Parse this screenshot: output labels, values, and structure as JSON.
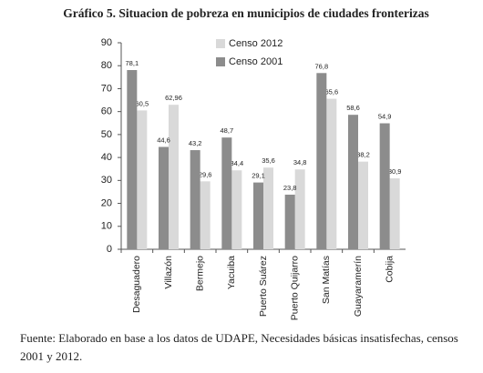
{
  "chart_data": {
    "type": "bar",
    "title": "Gráfico 5. Situacion de pobreza en municipios de ciudades fronterizas",
    "categories": [
      "Desaguadero",
      "Villazón",
      "Bermejo",
      "Yacuiba",
      "Puerto Suárez",
      "Puerto Quijarro",
      "San Matías",
      "Guayaramerín",
      "Cobija"
    ],
    "series": [
      {
        "name": "Censo 2012",
        "color": "#d9d9d9",
        "values": [
          60.5,
          62.96,
          29.6,
          34.4,
          35.6,
          34.8,
          65.6,
          38.2,
          30.9
        ],
        "value_labels": [
          "60,5",
          "62,96",
          "29,6",
          "34,4",
          "35,6",
          "34,8",
          "65,6",
          "38,2",
          "30,9"
        ]
      },
      {
        "name": "Censo 2001",
        "color": "#8c8c8c",
        "values": [
          78.1,
          44.6,
          43.2,
          48.7,
          29.1,
          23.8,
          76.8,
          58.6,
          54.9
        ],
        "value_labels": [
          "78,1",
          "44,6",
          "43,2",
          "48,7",
          "29,1",
          "23,8",
          "76,8",
          "58,6",
          "54,9"
        ]
      }
    ],
    "ylim": [
      0,
      90
    ],
    "yticks": [
      0,
      10,
      20,
      30,
      40,
      50,
      60,
      70,
      80,
      90
    ],
    "grid": false,
    "legend": "top-left",
    "source": "Fuente: Elaborado en base a los datos de UDAPE, Necesidades básicas insatisfechas, censos 2001 y 2012."
  }
}
